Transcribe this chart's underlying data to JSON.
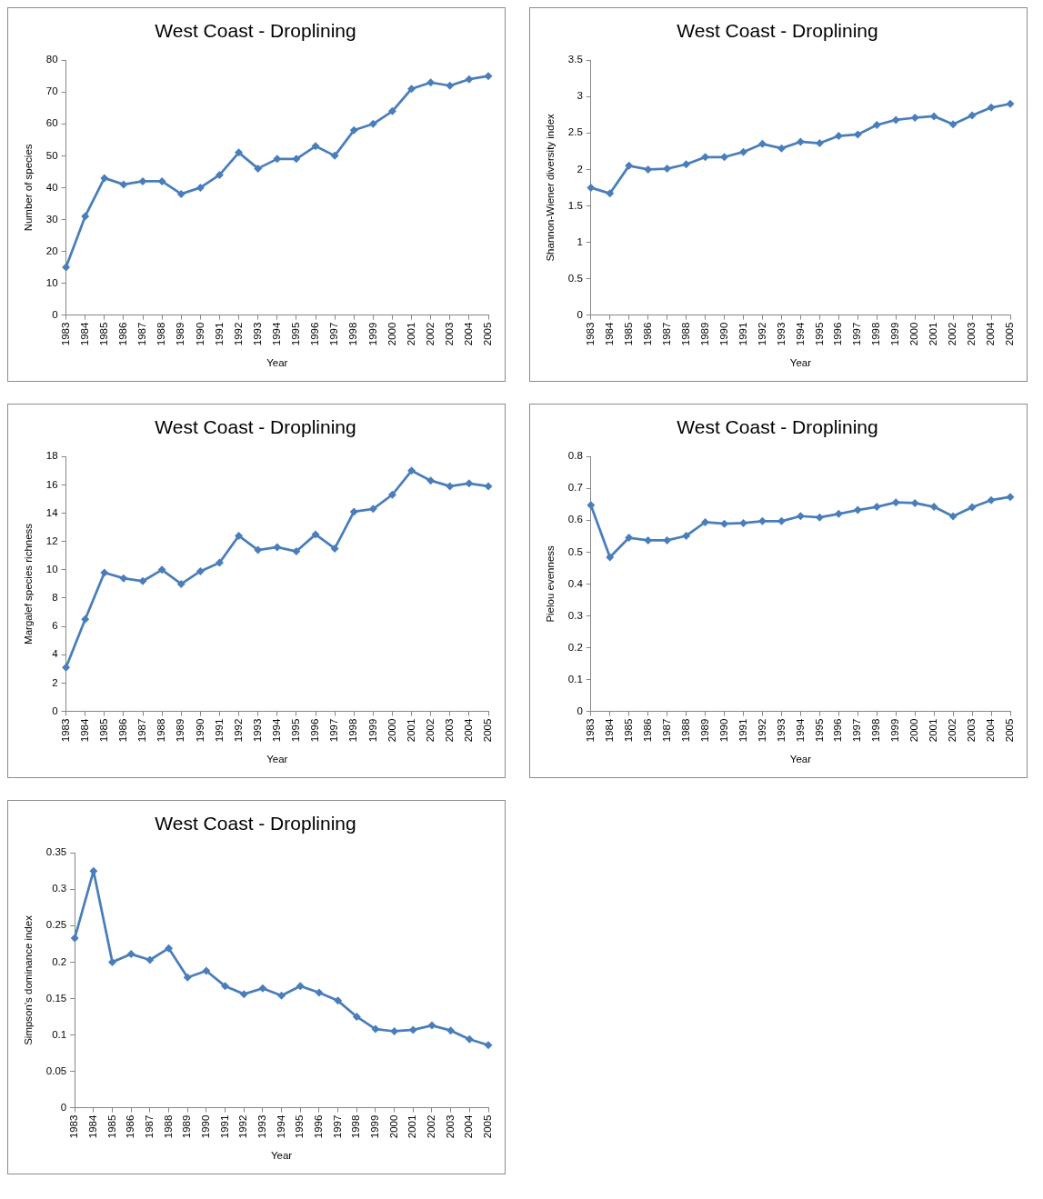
{
  "chart_data": [
    {
      "type": "line",
      "title": "West Coast - Droplining",
      "xlabel": "Year",
      "ylabel": "Number of species",
      "categories": [
        "1983",
        "1984",
        "1985",
        "1986",
        "1987",
        "1988",
        "1989",
        "1990",
        "1991",
        "1992",
        "1993",
        "1994",
        "1995",
        "1996",
        "1997",
        "1998",
        "1999",
        "2000",
        "2001",
        "2002",
        "2003",
        "2004",
        "2005"
      ],
      "values": [
        15,
        31,
        43,
        41,
        42,
        42,
        38,
        40,
        44,
        51,
        46,
        49,
        49,
        53,
        50,
        58,
        60,
        64,
        71,
        73,
        72,
        74,
        75
      ],
      "color": "#4a7ebb",
      "marker": "diamond",
      "ylim": [
        0,
        80
      ],
      "yticks": [
        0,
        10,
        20,
        30,
        40,
        50,
        60,
        70,
        80
      ],
      "grid": false,
      "legend": false
    },
    {
      "type": "line",
      "title": "West Coast - Droplining",
      "xlabel": "Year",
      "ylabel": "Shannon-Wiener diversity index",
      "categories": [
        "1983",
        "1984",
        "1985",
        "1986",
        "1987",
        "1988",
        "1989",
        "1990",
        "1991",
        "1992",
        "1993",
        "1994",
        "1995",
        "1996",
        "1997",
        "1998",
        "1999",
        "2000",
        "2001",
        "2002",
        "2003",
        "2004",
        "2005"
      ],
      "values": [
        1.75,
        1.67,
        2.05,
        2.0,
        2.01,
        2.07,
        2.17,
        2.17,
        2.24,
        2.35,
        2.29,
        2.38,
        2.36,
        2.46,
        2.48,
        2.61,
        2.68,
        2.71,
        2.73,
        2.62,
        2.74,
        2.85,
        2.9
      ],
      "color": "#4a7ebb",
      "marker": "diamond",
      "ylim": [
        0,
        3.5
      ],
      "yticks": [
        0,
        0.5,
        1,
        1.5,
        2,
        2.5,
        3,
        3.5
      ],
      "grid": false,
      "legend": false
    },
    {
      "type": "line",
      "title": "West Coast - Droplining",
      "xlabel": "Year",
      "ylabel": "Margalef species richness",
      "categories": [
        "1983",
        "1984",
        "1985",
        "1986",
        "1987",
        "1988",
        "1989",
        "1990",
        "1991",
        "1992",
        "1993",
        "1994",
        "1995",
        "1996",
        "1997",
        "1998",
        "1999",
        "2000",
        "2001",
        "2002",
        "2003",
        "2004",
        "2005"
      ],
      "values": [
        3.1,
        6.5,
        9.8,
        9.4,
        9.2,
        10.0,
        9.0,
        9.9,
        10.5,
        12.4,
        11.4,
        11.6,
        11.3,
        12.5,
        11.5,
        14.1,
        14.3,
        15.3,
        17.0,
        16.3,
        15.9,
        16.1,
        15.9
      ],
      "color": "#4a7ebb",
      "marker": "diamond",
      "ylim": [
        0,
        18
      ],
      "yticks": [
        0,
        2,
        4,
        6,
        8,
        10,
        12,
        14,
        16,
        18
      ],
      "grid": false,
      "legend": false
    },
    {
      "type": "line",
      "title": "West Coast - Droplining",
      "xlabel": "Year",
      "ylabel": "Pielou evenness",
      "categories": [
        "1983",
        "1984",
        "1985",
        "1986",
        "1987",
        "1988",
        "1989",
        "1990",
        "1991",
        "1992",
        "1993",
        "1994",
        "1995",
        "1996",
        "1997",
        "1998",
        "1999",
        "2000",
        "2001",
        "2002",
        "2003",
        "2004",
        "2005"
      ],
      "values": [
        0.647,
        0.484,
        0.545,
        0.537,
        0.537,
        0.551,
        0.594,
        0.589,
        0.591,
        0.597,
        0.597,
        0.613,
        0.609,
        0.62,
        0.632,
        0.642,
        0.656,
        0.654,
        0.642,
        0.612,
        0.641,
        0.663,
        0.673
      ],
      "color": "#4a7ebb",
      "marker": "diamond",
      "ylim": [
        0,
        0.8
      ],
      "yticks": [
        0,
        0.1,
        0.2,
        0.3,
        0.4,
        0.5,
        0.6,
        0.7,
        0.8
      ],
      "grid": false,
      "legend": false
    },
    {
      "type": "line",
      "title": "West Coast - Droplining",
      "xlabel": "Year",
      "ylabel": "Simpson's dominance index",
      "categories": [
        "1983",
        "1984",
        "1985",
        "1986",
        "1987",
        "1988",
        "1989",
        "1990",
        "1991",
        "1992",
        "1993",
        "1994",
        "1995",
        "1996",
        "1997",
        "1998",
        "1999",
        "2000",
        "2001",
        "2002",
        "2003",
        "2004",
        "2005"
      ],
      "values": [
        0.233,
        0.325,
        0.2,
        0.211,
        0.203,
        0.219,
        0.179,
        0.188,
        0.167,
        0.156,
        0.164,
        0.154,
        0.167,
        0.158,
        0.147,
        0.125,
        0.108,
        0.105,
        0.107,
        0.113,
        0.106,
        0.094,
        0.086
      ],
      "color": "#4a7ebb",
      "marker": "diamond",
      "ylim": [
        0,
        0.35
      ],
      "yticks": [
        0,
        0.05,
        0.1,
        0.15,
        0.2,
        0.25,
        0.3,
        0.35
      ],
      "grid": false,
      "legend": false
    }
  ]
}
